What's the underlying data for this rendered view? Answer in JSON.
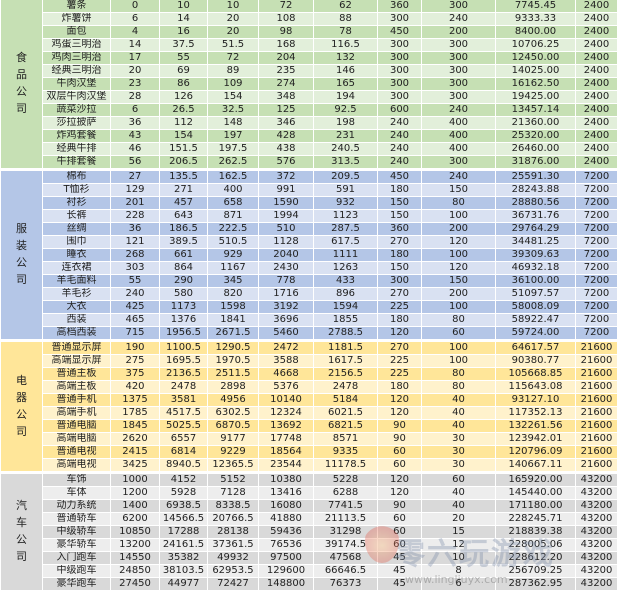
{
  "colors": {
    "food": [
      "#c6e0b4",
      "#e2efda"
    ],
    "clothing": [
      "#b4c6e7",
      "#d9e1f2"
    ],
    "electronics": [
      "#ffe699",
      "#fff2cc"
    ],
    "cars": [
      "#d9d9d9",
      "#ededed"
    ]
  },
  "groups": [
    {
      "key": "food",
      "label": "食品公司",
      "rows": [
        [
          "薯条",
          "0",
          "10",
          "10",
          "72",
          "62",
          "360",
          "300",
          "7745.45",
          "2400"
        ],
        [
          "炸薯饼",
          "6",
          "14",
          "20",
          "108",
          "88",
          "300",
          "240",
          "9333.33",
          "2400"
        ],
        [
          "面包",
          "4",
          "16",
          "20",
          "98",
          "78",
          "450",
          "200",
          "8400.00",
          "2400"
        ],
        [
          "鸡蛋三明治",
          "14",
          "37.5",
          "51.5",
          "168",
          "116.5",
          "300",
          "300",
          "10706.25",
          "2400"
        ],
        [
          "鸡肉三明治",
          "17",
          "55",
          "72",
          "204",
          "132",
          "300",
          "300",
          "12450.00",
          "2400"
        ],
        [
          "经典三明治",
          "20",
          "69",
          "89",
          "235",
          "146",
          "300",
          "300",
          "14025.00",
          "2400"
        ],
        [
          "牛肉汉堡",
          "23",
          "86",
          "109",
          "274",
          "165",
          "300",
          "300",
          "16162.50",
          "2400"
        ],
        [
          "双层牛肉汉堡",
          "28",
          "126",
          "154",
          "348",
          "194",
          "300",
          "300",
          "19425.00",
          "2400"
        ],
        [
          "蔬菜沙拉",
          "6",
          "26.5",
          "32.5",
          "125",
          "92.5",
          "600",
          "240",
          "13457.14",
          "2400"
        ],
        [
          "莎拉披萨",
          "36",
          "112",
          "148",
          "346",
          "198",
          "240",
          "400",
          "21360.00",
          "2400"
        ],
        [
          "炸鸡套餐",
          "43",
          "154",
          "197",
          "428",
          "231",
          "240",
          "400",
          "25320.00",
          "2400"
        ],
        [
          "经典牛排",
          "46",
          "151.5",
          "197.5",
          "438",
          "240.5",
          "240",
          "400",
          "26460.00",
          "2400"
        ],
        [
          "牛排套餐",
          "56",
          "206.5",
          "262.5",
          "576",
          "313.5",
          "240",
          "300",
          "31876.00",
          "2400"
        ]
      ]
    },
    {
      "key": "clothing",
      "label": "服装公司",
      "rows": [
        [
          "棉布",
          "27",
          "135.5",
          "162.5",
          "372",
          "209.5",
          "450",
          "240",
          "25591.30",
          "7200"
        ],
        [
          "T恤衫",
          "129",
          "271",
          "400",
          "991",
          "591",
          "180",
          "150",
          "28243.88",
          "7200"
        ],
        [
          "衬衫",
          "201",
          "457",
          "658",
          "1590",
          "932",
          "150",
          "80",
          "28880.56",
          "7200"
        ],
        [
          "长裤",
          "228",
          "643",
          "871",
          "1994",
          "1123",
          "150",
          "100",
          "36731.76",
          "7200"
        ],
        [
          "丝绸",
          "36",
          "186.5",
          "222.5",
          "510",
          "287.5",
          "360",
          "200",
          "29764.29",
          "7200"
        ],
        [
          "围巾",
          "121",
          "389.5",
          "510.5",
          "1128",
          "617.5",
          "270",
          "120",
          "34481.25",
          "7200"
        ],
        [
          "睡衣",
          "268",
          "661",
          "929",
          "2040",
          "1111",
          "180",
          "100",
          "39309.63",
          "7200"
        ],
        [
          "连衣裙",
          "303",
          "864",
          "1167",
          "2430",
          "1263",
          "150",
          "120",
          "46932.18",
          "7200"
        ],
        [
          "羊毛面料",
          "55",
          "290",
          "345",
          "778",
          "433",
          "300",
          "150",
          "36100.00",
          "7200"
        ],
        [
          "羊毛衫",
          "240",
          "580",
          "820",
          "1716",
          "896",
          "270",
          "200",
          "51097.57",
          "7200"
        ],
        [
          "大衣",
          "425",
          "1173",
          "1598",
          "3192",
          "1594",
          "225",
          "100",
          "58008.09",
          "7200"
        ],
        [
          "西装",
          "465",
          "1376",
          "1841",
          "3696",
          "1855",
          "180",
          "80",
          "58922.47",
          "7200"
        ],
        [
          "高档西装",
          "715",
          "1956.5",
          "2671.5",
          "5460",
          "2788.5",
          "120",
          "60",
          "59724.00",
          "7200"
        ]
      ]
    },
    {
      "key": "electronics",
      "label": "电器公司",
      "rows": [
        [
          "普通显示屏",
          "190",
          "1100.5",
          "1290.5",
          "2472",
          "1181.5",
          "270",
          "100",
          "64617.57",
          "21600"
        ],
        [
          "高端显示屏",
          "275",
          "1695.5",
          "1970.5",
          "3588",
          "1617.5",
          "225",
          "100",
          "90380.77",
          "21600"
        ],
        [
          "普通主板",
          "375",
          "2136.5",
          "2511.5",
          "4668",
          "2156.5",
          "225",
          "80",
          "105668.85",
          "21600"
        ],
        [
          "高端主板",
          "420",
          "2478",
          "2898",
          "5376",
          "2478",
          "180",
          "80",
          "115643.08",
          "21600"
        ],
        [
          "普通手机",
          "1375",
          "3581",
          "4956",
          "10140",
          "5184",
          "120",
          "40",
          "93127.10",
          "21600"
        ],
        [
          "高端手机",
          "1785",
          "4517.5",
          "6302.5",
          "12324",
          "6021.5",
          "120",
          "40",
          "117352.13",
          "21600"
        ],
        [
          "普通电脑",
          "1845",
          "5025.5",
          "6870.5",
          "13692",
          "6821.5",
          "90",
          "40",
          "132261.56",
          "21600"
        ],
        [
          "高端电脑",
          "2620",
          "6557",
          "9177",
          "17748",
          "8571",
          "90",
          "30",
          "123942.01",
          "21600"
        ],
        [
          "普通电视",
          "2415",
          "6814",
          "9229",
          "18564",
          "9335",
          "60",
          "30",
          "120796.09",
          "21600"
        ],
        [
          "高端电视",
          "3425",
          "8940.5",
          "12365.5",
          "23544",
          "11178.5",
          "60",
          "30",
          "140667.11",
          "21600"
        ]
      ]
    },
    {
      "key": "cars",
      "label": "汽车公司",
      "rows": [
        [
          "车饰",
          "1000",
          "4152",
          "5152",
          "10380",
          "5228",
          "120",
          "60",
          "165920.00",
          "43200"
        ],
        [
          "车体",
          "1200",
          "5928",
          "7128",
          "13416",
          "6288",
          "120",
          "40",
          "145440.00",
          "43200"
        ],
        [
          "动力系统",
          "1400",
          "6938.5",
          "8338.5",
          "16080",
          "7741.5",
          "90",
          "40",
          "171180.00",
          "43200"
        ],
        [
          "普通轿车",
          "6200",
          "14566.5",
          "20766.5",
          "41880",
          "21113.5",
          "60",
          "20",
          "228245.71",
          "43200"
        ],
        [
          "中级轿车",
          "10850",
          "17288",
          "28138",
          "59436",
          "31298",
          "60",
          "15",
          "218839.38",
          "43200"
        ],
        [
          "豪华轿车",
          "13200",
          "24161.5",
          "37361.5",
          "76536",
          "39174.5",
          "60",
          "12",
          "228005.06",
          "43200"
        ],
        [
          "入门跑车",
          "14550",
          "35382",
          "49932",
          "97500",
          "47568",
          "45",
          "10",
          "228612.20",
          "43200"
        ],
        [
          "中级跑车",
          "24850",
          "38103.5",
          "62953.5",
          "129600",
          "66646.5",
          "45",
          "8",
          "256709.25",
          "43200"
        ],
        [
          "豪华跑车",
          "27450",
          "44977",
          "72427",
          "148800",
          "76373",
          "45",
          "6",
          "287362.95",
          "43200"
        ]
      ]
    }
  ],
  "watermark": {
    "title": "零六玩游戏",
    "url": "www.lingliuyx.com"
  }
}
